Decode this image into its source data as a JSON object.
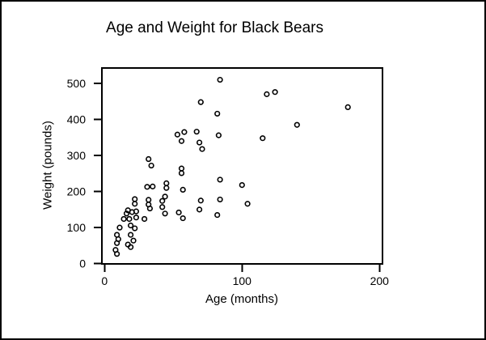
{
  "colors": {
    "foreground": "#000000",
    "background": "#ffffff"
  },
  "chart_data": {
    "type": "scatter",
    "title": "Age and Weight for Black Bears",
    "xlabel": "Age (months)",
    "ylabel": "Weight (pounds)",
    "x_ticks": [
      0,
      100,
      200
    ],
    "y_ticks": [
      0,
      100,
      200,
      300,
      400,
      500
    ],
    "xlim": [
      -2,
      202
    ],
    "ylim": [
      -2,
      543
    ],
    "grid": false,
    "legend_position": "none",
    "marker": {
      "shape": "open-circle",
      "color": "#000000",
      "fill": "none"
    },
    "points": [
      [
        8,
        38
      ],
      [
        9,
        27
      ],
      [
        9,
        57
      ],
      [
        10,
        68
      ],
      [
        9,
        80
      ],
      [
        11,
        100
      ],
      [
        17,
        53
      ],
      [
        19,
        46
      ],
      [
        21,
        64
      ],
      [
        19,
        80
      ],
      [
        22,
        98
      ],
      [
        19,
        106
      ],
      [
        14,
        124
      ],
      [
        18,
        124
      ],
      [
        16,
        139
      ],
      [
        23,
        128
      ],
      [
        29,
        124
      ],
      [
        17,
        148
      ],
      [
        20,
        143
      ],
      [
        23,
        145
      ],
      [
        22,
        166
      ],
      [
        22,
        179
      ],
      [
        31,
        213
      ],
      [
        35,
        214
      ],
      [
        32,
        177
      ],
      [
        32,
        164
      ],
      [
        33,
        153
      ],
      [
        34,
        272
      ],
      [
        32,
        290
      ],
      [
        42,
        157
      ],
      [
        42,
        174
      ],
      [
        44,
        186
      ],
      [
        44,
        139
      ],
      [
        45,
        223
      ],
      [
        45,
        210
      ],
      [
        53,
        358
      ],
      [
        54,
        142
      ],
      [
        56,
        340
      ],
      [
        56,
        264
      ],
      [
        56,
        251
      ],
      [
        57,
        205
      ],
      [
        57,
        126
      ],
      [
        58,
        365
      ],
      [
        67,
        366
      ],
      [
        69,
        336
      ],
      [
        69,
        150
      ],
      [
        70,
        175
      ],
      [
        70,
        448
      ],
      [
        71,
        318
      ],
      [
        82,
        416
      ],
      [
        82,
        135
      ],
      [
        83,
        356
      ],
      [
        84,
        233
      ],
      [
        84,
        178
      ],
      [
        84,
        510
      ],
      [
        100,
        218
      ],
      [
        104,
        166
      ],
      [
        115,
        348
      ],
      [
        118,
        470
      ],
      [
        124,
        476
      ],
      [
        140,
        385
      ],
      [
        177,
        434
      ]
    ]
  }
}
